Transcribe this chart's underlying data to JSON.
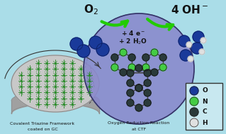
{
  "bg_color": "#aadde8",
  "rxn_circle_color": "#8888cc",
  "rxn_circle_edge": "#333366",
  "disk_face_color": "#c8c8c8",
  "disk_shadow_color": "#a0a0a0",
  "disk_edge_color": "#888888",
  "grid_color": "#228822",
  "bond_color": "#444444",
  "c_atom_color": "#2a3a3a",
  "n_atom_color": "#44cc44",
  "o_mol_color": "#1a3a9a",
  "h_mol_color": "#e0e0e0",
  "arrow_color": "#22cc00",
  "text_color": "#111111",
  "o2_label": "O$_2$",
  "oh_label": "4 OH$^-$",
  "reaction_text_line1": "+ 4 e$^-$",
  "reaction_text_line2": "+ 2 H$_2$O",
  "ctf_label_line1": "Covalent Triazine Framework",
  "ctf_label_line2": "coated on GC",
  "rxn_label_line1": "Oxygen Reduction Reaction",
  "rxn_label_line2": "at CTF",
  "legend_items": [
    "O",
    "N",
    "C",
    "H"
  ],
  "legend_colors": [
    "#1a3a9a",
    "#44cc44",
    "#2a3a3a",
    "#e0e0e0"
  ],
  "legend_bg": "#c8e8f0",
  "legend_edge": "#333333"
}
